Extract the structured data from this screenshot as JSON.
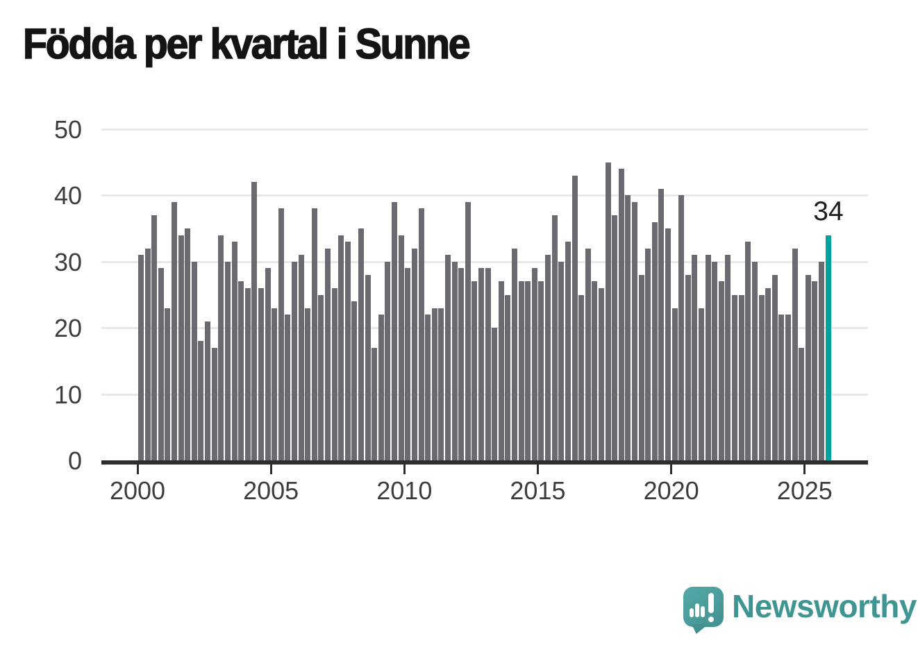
{
  "title": "Födda per kvartal i Sunne",
  "annotation": {
    "last_value_label": "34"
  },
  "logo": {
    "text": "Newsworthy",
    "icon": "speech-bubble-with-bar-chart-and-exclamation"
  },
  "colors": {
    "bar": "#6a6a71",
    "highlight": "#00a49c",
    "gridline": "#e8e8e8",
    "axis": "#2d2d2d",
    "axis_label": "#3d3d3d",
    "title": "#141414",
    "logo_teal": "#4a9d9b",
    "logo_text": "#3f9591",
    "background": "#ffffff"
  },
  "chart_data": {
    "type": "bar",
    "title": "Födda per kvartal i Sunne",
    "x_unit": "quarter",
    "start_period": "2000 Q1",
    "end_period": "2025 Q4",
    "x_tick_labels": [
      "2000",
      "2005",
      "2010",
      "2015",
      "2020",
      "2025"
    ],
    "y_ticks": [
      0,
      10,
      20,
      30,
      40,
      50
    ],
    "ylim": [
      0,
      50
    ],
    "grid": "horizontal",
    "legend": "none",
    "values": [
      31,
      32,
      37,
      29,
      23,
      39,
      34,
      35,
      30,
      18,
      21,
      17,
      34,
      30,
      33,
      27,
      26,
      42,
      26,
      29,
      23,
      38,
      22,
      30,
      31,
      23,
      38,
      25,
      32,
      26,
      34,
      33,
      24,
      35,
      28,
      17,
      22,
      30,
      39,
      34,
      29,
      32,
      38,
      22,
      23,
      23,
      31,
      30,
      29,
      39,
      27,
      29,
      29,
      20,
      27,
      25,
      32,
      27,
      27,
      29,
      27,
      31,
      37,
      30,
      33,
      43,
      25,
      32,
      27,
      26,
      45,
      37,
      44,
      40,
      39,
      28,
      32,
      36,
      41,
      35,
      23,
      40,
      28,
      31,
      23,
      31,
      30,
      27,
      31,
      25,
      25,
      33,
      30,
      25,
      26,
      28,
      22,
      22,
      32,
      17,
      28,
      27,
      30,
      34
    ],
    "highlight_last_bar": true,
    "last_value": 34
  }
}
